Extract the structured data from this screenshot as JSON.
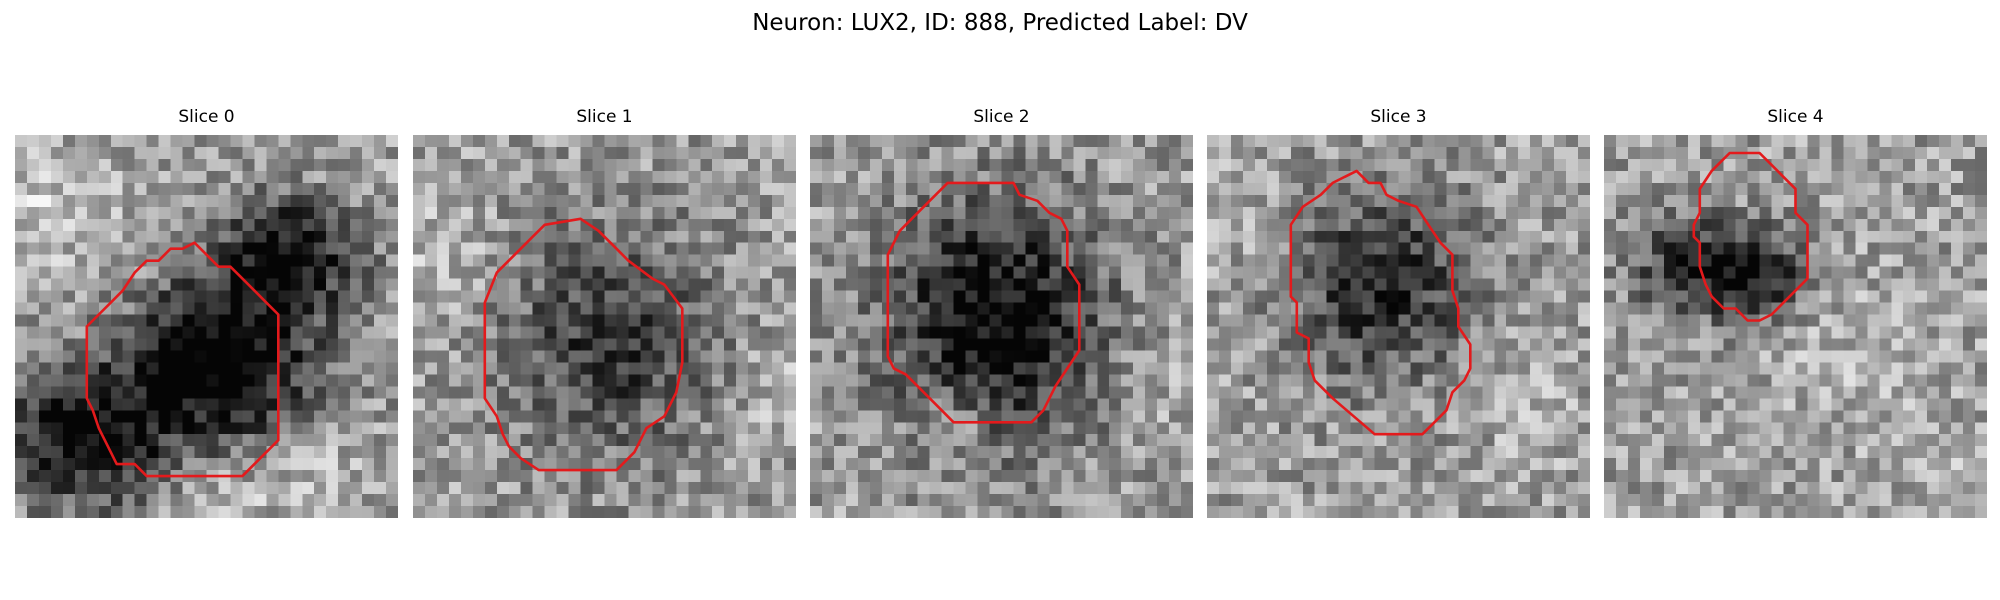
{
  "figure": {
    "title": "Neuron: LUX2, ID: 888, Predicted Label: DV"
  },
  "slices": [
    {
      "label": "Slice 0"
    },
    {
      "label": "Slice 1"
    },
    {
      "label": "Slice 2"
    },
    {
      "label": "Slice 3"
    },
    {
      "label": "Slice 4"
    }
  ],
  "colors": {
    "contour": "#e31a1c",
    "background": "#ffffff"
  }
}
